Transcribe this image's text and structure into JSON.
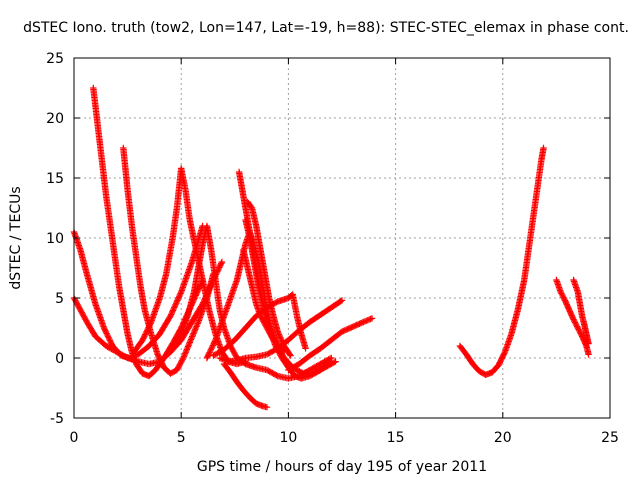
{
  "chart_data": {
    "type": "scatter",
    "title": "dSTEC Iono. truth (tow2, Lon=147, Lat=-19, h=88): STEC-STEC_elemax in phase cont.",
    "xlabel": "GPS time / hours of day 195 of year 2011",
    "ylabel": "dSTEC  / TECUs",
    "xlim": [
      0,
      25
    ],
    "ylim": [
      -5,
      25
    ],
    "xticks": [
      0,
      5,
      10,
      15,
      20,
      25
    ],
    "yticks": [
      -5,
      0,
      5,
      10,
      15,
      20,
      25
    ],
    "grid": true,
    "marker": "plus",
    "color": "#ff0000",
    "series": [
      {
        "points": [
          [
            0.0,
            10.5
          ],
          [
            0.3,
            9.0
          ],
          [
            0.6,
            7.0
          ],
          [
            1.0,
            4.5
          ],
          [
            1.4,
            2.5
          ],
          [
            1.8,
            1.0
          ],
          [
            2.2,
            0.2
          ],
          [
            2.6,
            0.0
          ],
          [
            3.0,
            0.3
          ],
          [
            3.5,
            1.0
          ],
          [
            4.0,
            2.0
          ],
          [
            4.5,
            3.5
          ],
          [
            5.0,
            5.5
          ],
          [
            5.5,
            8.0
          ],
          [
            6.0,
            11.0
          ]
        ]
      },
      {
        "points": [
          [
            0.0,
            5.0
          ],
          [
            0.3,
            4.0
          ],
          [
            0.6,
            3.0
          ],
          [
            1.0,
            1.8
          ],
          [
            1.5,
            1.0
          ],
          [
            2.0,
            0.5
          ],
          [
            2.5,
            0.0
          ],
          [
            3.0,
            -0.3
          ],
          [
            3.5,
            -0.5
          ],
          [
            4.0,
            -0.3
          ],
          [
            4.5,
            0.5
          ],
          [
            5.0,
            1.5
          ],
          [
            5.5,
            3.0
          ],
          [
            6.0,
            4.5
          ],
          [
            6.5,
            6.5
          ],
          [
            6.9,
            8.0
          ]
        ]
      },
      {
        "points": [
          [
            0.9,
            22.5
          ],
          [
            1.1,
            19.5
          ],
          [
            1.3,
            16.5
          ],
          [
            1.5,
            13.5
          ],
          [
            1.7,
            11.0
          ],
          [
            1.9,
            8.5
          ],
          [
            2.1,
            6.0
          ],
          [
            2.3,
            4.0
          ],
          [
            2.5,
            2.0
          ],
          [
            2.7,
            0.5
          ],
          [
            2.9,
            -0.5
          ],
          [
            3.2,
            -1.3
          ],
          [
            3.5,
            -1.5
          ],
          [
            3.8,
            -1.0
          ],
          [
            4.2,
            0.0
          ],
          [
            4.6,
            1.2
          ],
          [
            5.0,
            2.5
          ],
          [
            5.5,
            4.5
          ],
          [
            6.0,
            6.5
          ]
        ]
      },
      {
        "points": [
          [
            2.3,
            17.5
          ],
          [
            2.5,
            14.0
          ],
          [
            2.7,
            11.0
          ],
          [
            2.9,
            8.5
          ],
          [
            3.1,
            6.0
          ],
          [
            3.3,
            4.0
          ],
          [
            3.6,
            2.0
          ],
          [
            3.9,
            0.3
          ],
          [
            4.2,
            -0.8
          ],
          [
            4.5,
            -1.3
          ],
          [
            4.8,
            -1.0
          ],
          [
            5.1,
            0.0
          ],
          [
            5.4,
            1.3
          ],
          [
            5.8,
            3.0
          ],
          [
            6.2,
            5.0
          ],
          [
            6.5,
            7.0
          ]
        ]
      },
      {
        "points": [
          [
            2.8,
            0.5
          ],
          [
            3.2,
            1.5
          ],
          [
            3.6,
            3.0
          ],
          [
            4.0,
            5.0
          ],
          [
            4.3,
            7.0
          ],
          [
            4.6,
            10.0
          ],
          [
            4.8,
            12.5
          ],
          [
            5.0,
            15.8
          ],
          [
            5.2,
            14.0
          ],
          [
            5.4,
            11.5
          ],
          [
            5.7,
            9.0
          ],
          [
            6.0,
            6.5
          ],
          [
            6.3,
            4.0
          ],
          [
            6.6,
            2.0
          ],
          [
            6.9,
            0.5
          ],
          [
            7.2,
            -0.3
          ],
          [
            7.6,
            -0.5
          ],
          [
            8.0,
            -0.3
          ]
        ]
      },
      {
        "points": [
          [
            4.2,
            0.0
          ],
          [
            4.6,
            1.0
          ],
          [
            5.0,
            2.0
          ],
          [
            5.3,
            3.5
          ],
          [
            5.6,
            5.5
          ],
          [
            5.8,
            7.5
          ],
          [
            6.0,
            9.5
          ],
          [
            6.2,
            11.0
          ],
          [
            6.4,
            9.0
          ],
          [
            6.6,
            6.5
          ],
          [
            6.8,
            4.0
          ],
          [
            7.0,
            2.5
          ],
          [
            7.3,
            1.0
          ],
          [
            7.6,
            0.0
          ],
          [
            8.0,
            -0.5
          ],
          [
            8.5,
            -0.8
          ],
          [
            9.0,
            -1.0
          ],
          [
            9.5,
            -1.5
          ],
          [
            10.0,
            -1.7
          ],
          [
            10.5,
            -1.5
          ],
          [
            11.0,
            -1.0
          ],
          [
            11.5,
            -0.5
          ],
          [
            12.0,
            0.0
          ]
        ]
      },
      {
        "points": [
          [
            6.5,
            0.2
          ],
          [
            7.0,
            0.7
          ],
          [
            7.5,
            1.5
          ],
          [
            8.0,
            2.5
          ],
          [
            8.5,
            3.5
          ],
          [
            9.0,
            4.2
          ],
          [
            9.5,
            4.7
          ],
          [
            10.0,
            5.0
          ],
          [
            10.2,
            5.3
          ],
          [
            10.4,
            3.5
          ],
          [
            10.6,
            2.0
          ],
          [
            10.8,
            0.8
          ]
        ]
      },
      {
        "points": [
          [
            6.2,
            0.0
          ],
          [
            6.6,
            1.5
          ],
          [
            7.0,
            3.5
          ],
          [
            7.3,
            5.0
          ],
          [
            7.6,
            6.5
          ],
          [
            7.8,
            8.0
          ],
          [
            8.0,
            9.5
          ],
          [
            8.2,
            10.5
          ],
          [
            8.4,
            9.5
          ],
          [
            8.6,
            8.0
          ],
          [
            8.8,
            6.0
          ],
          [
            9.0,
            4.0
          ],
          [
            9.2,
            2.5
          ],
          [
            9.5,
            1.0
          ],
          [
            9.8,
            0.0
          ],
          [
            10.2,
            -0.8
          ],
          [
            10.7,
            -1.3
          ],
          [
            11.2,
            -1.2
          ],
          [
            11.7,
            -0.8
          ],
          [
            12.2,
            -0.3
          ]
        ]
      },
      {
        "points": [
          [
            7.7,
            15.5
          ],
          [
            7.9,
            13.5
          ],
          [
            8.1,
            11.5
          ],
          [
            8.3,
            9.5
          ],
          [
            8.5,
            7.5
          ],
          [
            8.7,
            5.5
          ],
          [
            8.9,
            4.0
          ],
          [
            9.1,
            2.5
          ],
          [
            9.4,
            1.0
          ],
          [
            9.7,
            0.0
          ],
          [
            10.0,
            -0.8
          ],
          [
            10.3,
            -1.5
          ],
          [
            10.6,
            -1.7
          ],
          [
            11.0,
            -1.5
          ],
          [
            11.5,
            -1.0
          ],
          [
            12.0,
            -0.3
          ]
        ]
      },
      {
        "points": [
          [
            8.0,
            11.5
          ],
          [
            8.2,
            10.0
          ],
          [
            8.4,
            8.0
          ],
          [
            8.6,
            6.0
          ],
          [
            8.8,
            4.5
          ],
          [
            9.0,
            3.0
          ],
          [
            9.2,
            2.0
          ],
          [
            9.5,
            1.0
          ],
          [
            9.8,
            0.5
          ]
        ]
      },
      {
        "points": [
          [
            8.1,
            13.0
          ],
          [
            8.3,
            12.5
          ],
          [
            8.5,
            11.0
          ],
          [
            8.7,
            9.0
          ],
          [
            8.9,
            7.0
          ],
          [
            9.1,
            5.0
          ],
          [
            9.3,
            3.5
          ],
          [
            9.5,
            2.2
          ],
          [
            9.8,
            1.0
          ],
          [
            10.1,
            0.2
          ]
        ]
      },
      {
        "points": [
          [
            7.9,
            9.0
          ],
          [
            8.1,
            7.5
          ],
          [
            8.3,
            6.0
          ],
          [
            8.5,
            4.5
          ],
          [
            8.7,
            3.5
          ],
          [
            9.0,
            2.5
          ],
          [
            9.3,
            1.5
          ]
        ]
      },
      {
        "points": [
          [
            6.8,
            0.0
          ],
          [
            7.2,
            -0.3
          ],
          [
            7.6,
            -0.2
          ],
          [
            8.0,
            0.0
          ],
          [
            8.5,
            0.1
          ],
          [
            9.0,
            0.3
          ],
          [
            9.5,
            0.8
          ],
          [
            10.0,
            1.5
          ],
          [
            10.5,
            2.3
          ],
          [
            11.0,
            3.0
          ],
          [
            11.5,
            3.6
          ],
          [
            12.0,
            4.2
          ],
          [
            12.5,
            4.8
          ]
        ]
      },
      {
        "points": [
          [
            7.0,
            -0.5
          ],
          [
            7.3,
            -1.2
          ],
          [
            7.6,
            -2.0
          ],
          [
            7.9,
            -2.7
          ],
          [
            8.2,
            -3.3
          ],
          [
            8.5,
            -3.8
          ],
          [
            8.8,
            -4.0
          ],
          [
            9.0,
            -4.1
          ]
        ]
      },
      {
        "points": [
          [
            10.0,
            -1.0
          ],
          [
            10.5,
            -0.5
          ],
          [
            11.0,
            0.2
          ],
          [
            11.5,
            0.8
          ],
          [
            12.0,
            1.5
          ],
          [
            12.5,
            2.2
          ],
          [
            13.0,
            2.6
          ],
          [
            13.5,
            3.0
          ],
          [
            13.9,
            3.3
          ]
        ]
      },
      {
        "points": [
          [
            18.0,
            1.0
          ],
          [
            18.3,
            0.3
          ],
          [
            18.6,
            -0.5
          ],
          [
            18.9,
            -1.1
          ],
          [
            19.2,
            -1.4
          ],
          [
            19.5,
            -1.2
          ],
          [
            19.8,
            -0.6
          ],
          [
            20.1,
            0.5
          ],
          [
            20.4,
            2.0
          ],
          [
            20.7,
            4.0
          ],
          [
            21.0,
            6.5
          ],
          [
            21.2,
            9.0
          ],
          [
            21.4,
            11.5
          ],
          [
            21.6,
            14.0
          ],
          [
            21.8,
            16.5
          ],
          [
            21.9,
            17.5
          ]
        ]
      },
      {
        "points": [
          [
            22.5,
            6.5
          ],
          [
            22.7,
            5.5
          ],
          [
            22.9,
            4.8
          ],
          [
            23.1,
            4.0
          ],
          [
            23.3,
            3.2
          ],
          [
            23.5,
            2.5
          ],
          [
            23.7,
            1.8
          ],
          [
            23.9,
            1.0
          ],
          [
            24.0,
            0.3
          ]
        ]
      },
      {
        "points": [
          [
            23.3,
            6.5
          ],
          [
            23.5,
            5.5
          ],
          [
            23.6,
            4.5
          ],
          [
            23.7,
            3.5
          ],
          [
            23.8,
            2.8
          ],
          [
            23.9,
            2.0
          ],
          [
            24.0,
            1.2
          ]
        ]
      }
    ]
  }
}
